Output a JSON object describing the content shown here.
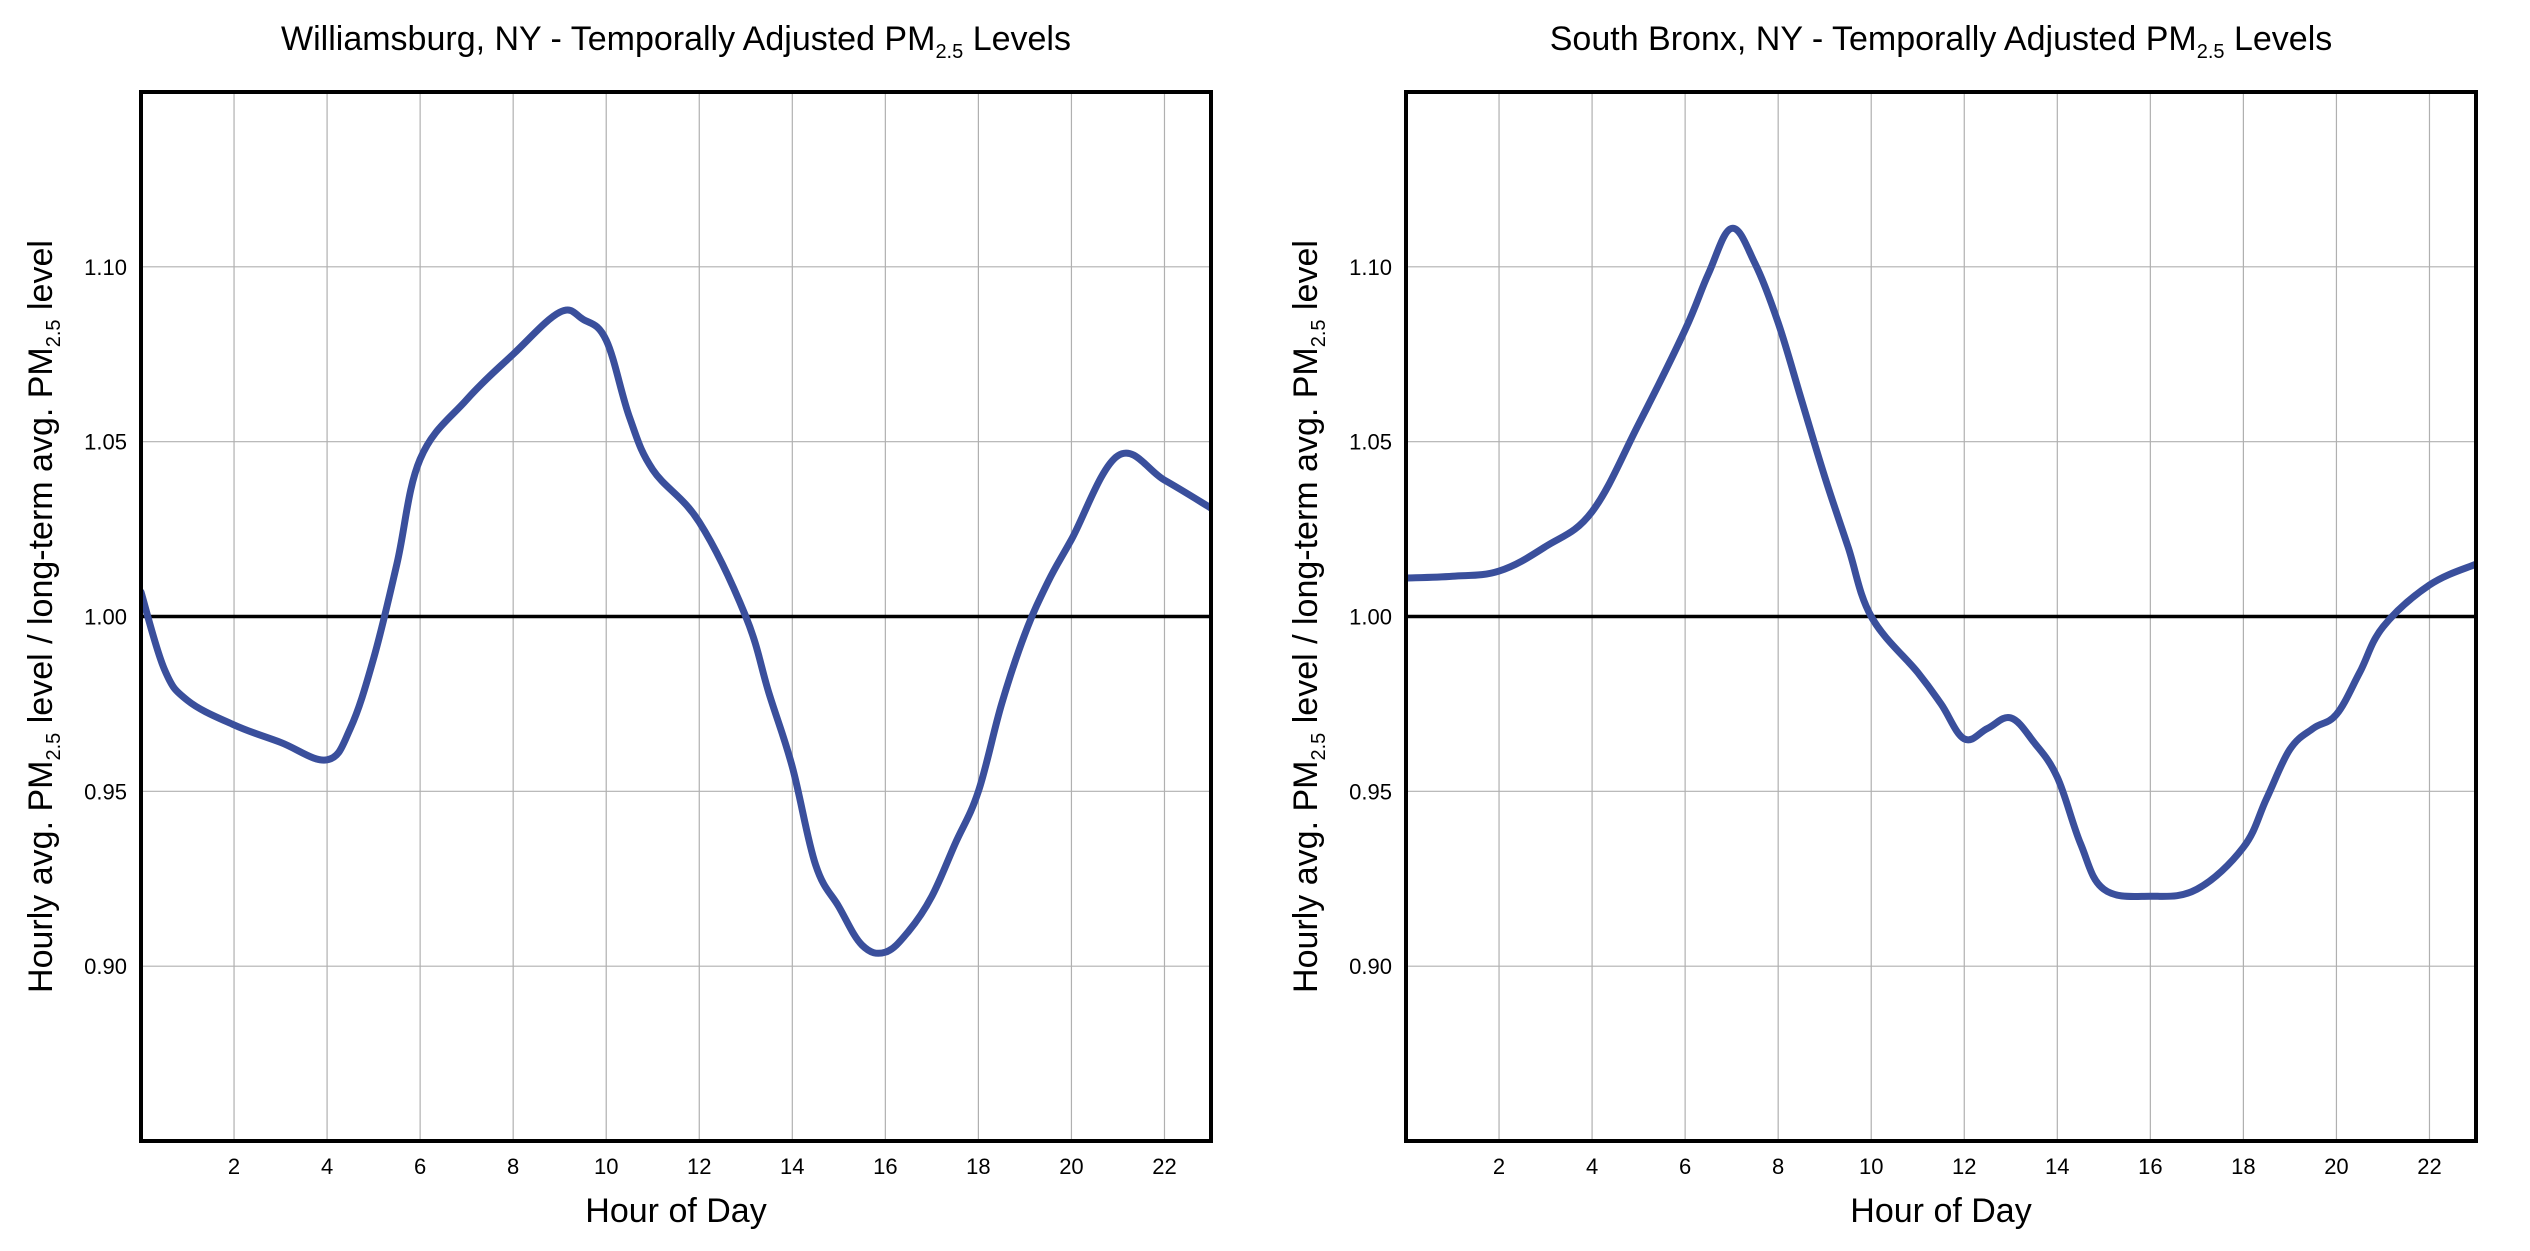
{
  "chart_data": [
    {
      "type": "line",
      "title": {
        "prefix": "Williamsburg, NY - Temporally Adjusted PM",
        "sub": "2.5",
        "suffix": " Levels"
      },
      "xlabel": "Hour of Day",
      "ylabel": {
        "p1": "Hourly avg.  PM",
        "s1": "2.5",
        "p2": " level / long-term avg. PM",
        "s2": "2.5",
        "p3": " level"
      },
      "xlim": [
        0,
        23
      ],
      "ylim": [
        0.85,
        1.15
      ],
      "xticks": [
        "2",
        "4",
        "6",
        "8",
        "10",
        "12",
        "14",
        "16",
        "18",
        "20",
        "22"
      ],
      "yticks": [
        "0.90",
        "0.95",
        "1.00",
        "1.05",
        "1.10"
      ],
      "reference_line": 1.0,
      "grid": true,
      "line_color": "#3a4f9c",
      "series": [
        {
          "x": [
            0,
            0.5,
            1,
            2,
            3,
            4,
            4.5,
            5,
            5.5,
            6,
            7,
            8,
            9,
            9.5,
            10,
            10.5,
            11,
            12,
            13,
            13.5,
            14,
            14.5,
            15,
            15.5,
            16,
            16.5,
            17,
            17.5,
            18,
            18.5,
            19,
            19.5,
            20,
            21,
            22,
            23
          ],
          "y": [
            1.007,
            0.985,
            0.976,
            0.969,
            0.964,
            0.959,
            0.968,
            0.988,
            1.015,
            1.045,
            1.062,
            1.075,
            1.087,
            1.085,
            1.079,
            1.057,
            1.042,
            1.027,
            1.0,
            0.978,
            0.957,
            0.929,
            0.917,
            0.906,
            0.904,
            0.91,
            0.92,
            0.935,
            0.95,
            0.975,
            0.995,
            1.01,
            1.022,
            1.046,
            1.039,
            1.031
          ]
        }
      ]
    },
    {
      "type": "line",
      "title": {
        "prefix": "South Bronx, NY - Temporally Adjusted PM",
        "sub": "2.5",
        "suffix": " Levels"
      },
      "xlabel": "Hour of Day",
      "ylabel": {
        "p1": "Hourly avg.  PM",
        "s1": "2.5",
        "p2": " level / long-term avg. PM",
        "s2": "2.5",
        "p3": " level"
      },
      "xlim": [
        0,
        23
      ],
      "ylim": [
        0.85,
        1.15
      ],
      "xticks": [
        "2",
        "4",
        "6",
        "8",
        "10",
        "12",
        "14",
        "16",
        "18",
        "20",
        "22"
      ],
      "yticks": [
        "0.90",
        "0.95",
        "1.00",
        "1.05",
        "1.10"
      ],
      "reference_line": 1.0,
      "grid": true,
      "line_color": "#3a4f9c",
      "series": [
        {
          "x": [
            0,
            1,
            2,
            3,
            4,
            5,
            6,
            6.5,
            7,
            7.5,
            8,
            8.5,
            9,
            9.5,
            10,
            11,
            11.5,
            12,
            12.5,
            13,
            13.5,
            14,
            14.5,
            15,
            16,
            17,
            18,
            18.5,
            19,
            19.5,
            20,
            20.5,
            21,
            22,
            23
          ],
          "y": [
            1.011,
            1.0115,
            1.013,
            1.02,
            1.03,
            1.055,
            1.082,
            1.098,
            1.111,
            1.101,
            1.084,
            1.062,
            1.04,
            1.02,
            1.0,
            0.984,
            0.975,
            0.965,
            0.968,
            0.971,
            0.964,
            0.954,
            0.935,
            0.922,
            0.92,
            0.922,
            0.934,
            0.948,
            0.962,
            0.968,
            0.972,
            0.984,
            0.997,
            1.009,
            1.015
          ]
        }
      ]
    }
  ]
}
